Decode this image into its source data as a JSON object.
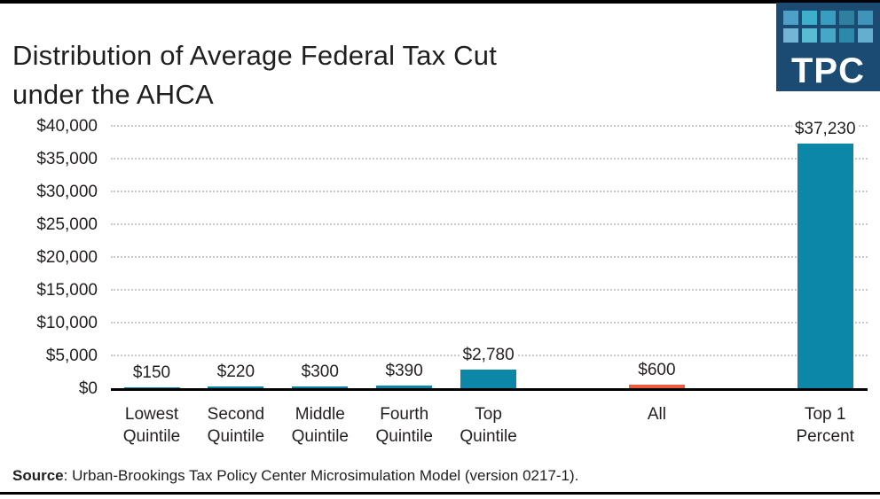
{
  "page": {
    "title_line1": "Distribution of Average Federal Tax Cut",
    "title_line2": "under the AHCA"
  },
  "logo": {
    "text": "TPC",
    "bg_color": "#1B4A73",
    "square_colors_row1": [
      "#4FA0C6",
      "#3FB0CC",
      "#379EC2",
      "#2E7FA0",
      "#3E94B9"
    ],
    "square_colors_row2": [
      "#74B5D6",
      "#5ABCD2",
      "#47A7C7",
      "#2E88AA",
      "#64AFCF"
    ]
  },
  "source": {
    "label": "Source",
    "text": ": Urban-Brookings Tax Policy Center Microsimulation Model (version 0217-1)."
  },
  "chart_data": {
    "type": "bar",
    "title": "Distribution of Average Federal Tax Cut under the AHCA",
    "categories": [
      "Lowest\nQuintile",
      "Second\nQuintile",
      "Middle\nQuintile",
      "Fourth\nQuintile",
      "Top\nQuintile",
      "All",
      "Top 1\nPercent"
    ],
    "values": [
      150,
      220,
      300,
      390,
      2780,
      600,
      37230
    ],
    "value_labels": [
      "$150",
      "$220",
      "$300",
      "$390",
      "$2,780",
      "$600",
      "$37,230"
    ],
    "bar_colors": [
      "#0D87A8",
      "#0D87A8",
      "#0D87A8",
      "#0D87A8",
      "#0D87A8",
      "#EF5B41",
      "#0D87A8"
    ],
    "slots": [
      0,
      1,
      2,
      3,
      4,
      6,
      8
    ],
    "accent_teal": "#0D87A8",
    "accent_orange": "#EF5B41",
    "xlabel": "",
    "ylabel": "",
    "ylim": [
      0,
      40000
    ],
    "grid": "horizontal dotted gray",
    "legend": "none",
    "yticks": [
      {
        "value": 0,
        "label": "$0"
      },
      {
        "value": 5000,
        "label": "$5,000"
      },
      {
        "value": 10000,
        "label": "$10,000"
      },
      {
        "value": 15000,
        "label": "$15,000"
      },
      {
        "value": 20000,
        "label": "$20,000"
      },
      {
        "value": 25000,
        "label": "$25,000"
      },
      {
        "value": 30000,
        "label": "$30,000"
      },
      {
        "value": 35000,
        "label": "$35,000"
      },
      {
        "value": 40000,
        "label": "$40,000"
      }
    ]
  }
}
